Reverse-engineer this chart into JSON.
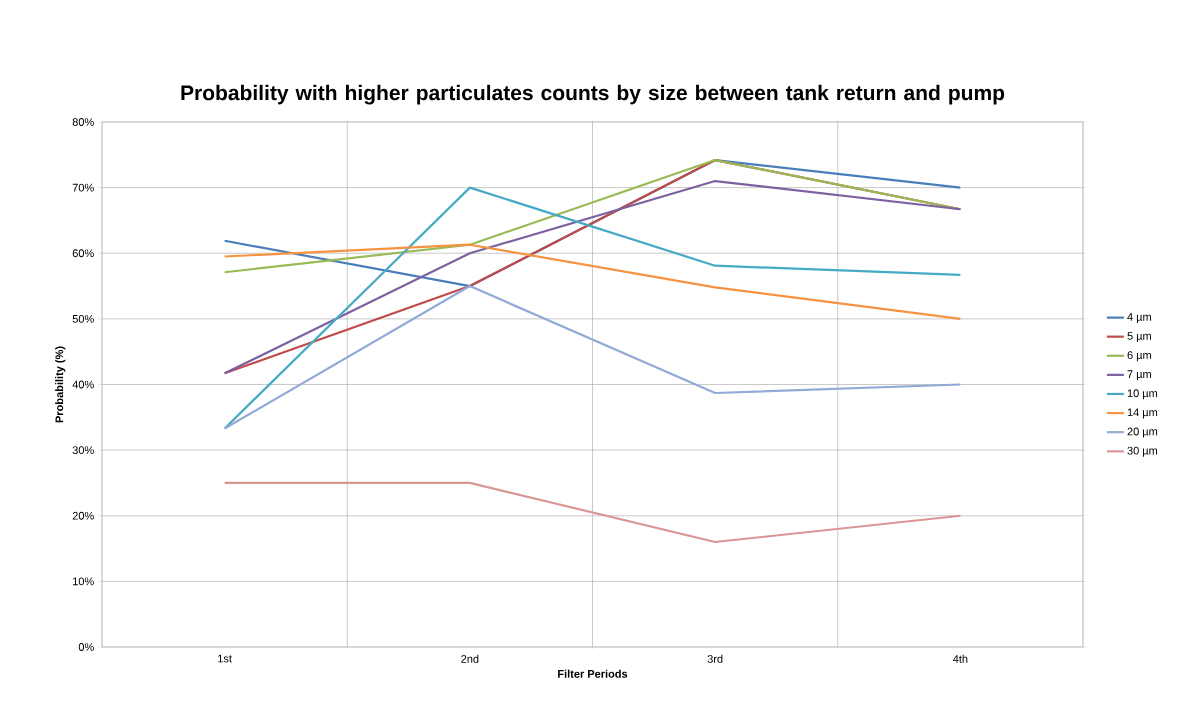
{
  "chart_data": {
    "type": "line",
    "title": "Probability with higher particulates counts by size between tank return and pump",
    "xlabel": "Filter Periods",
    "ylabel": "Probability (%)",
    "categories": [
      "1st",
      "2nd",
      "3rd",
      "4th"
    ],
    "series": [
      {
        "name": "4 µm",
        "color": "#4a7ebb",
        "values": [
          61.9,
          55,
          74.2,
          70
        ]
      },
      {
        "name": "5 µm",
        "color": "#be4b48",
        "values": [
          41.7,
          55,
          74.2,
          66.7
        ]
      },
      {
        "name": "6 µm",
        "color": "#98b954",
        "values": [
          57.1,
          61.3,
          74.2,
          66.7
        ]
      },
      {
        "name": "7 µm",
        "color": "#7d60a0",
        "values": [
          41.7,
          60,
          71,
          66.7
        ]
      },
      {
        "name": "10 µm",
        "color": "#46aac5",
        "values": [
          33.3,
          70,
          58.1,
          56.7
        ]
      },
      {
        "name": "14 µm",
        "color": "#f69240",
        "values": [
          59.5,
          61.3,
          54.8,
          50
        ]
      },
      {
        "name": "20 µm",
        "color": "#93a9d7",
        "values": [
          33.3,
          55,
          38.7,
          40
        ]
      },
      {
        "name": "30 µm",
        "color": "#d99694",
        "values": [
          25,
          25,
          16,
          20
        ]
      }
    ],
    "ylim": [
      0,
      80
    ],
    "yticks": [
      {
        "value": 0,
        "label": "0%"
      },
      {
        "value": 10,
        "label": "10%"
      },
      {
        "value": 20,
        "label": "20%"
      },
      {
        "value": 30,
        "label": "30%"
      },
      {
        "value": 40,
        "label": "40%"
      },
      {
        "value": 50,
        "label": "50%"
      },
      {
        "value": 60,
        "label": "60%"
      },
      {
        "value": 70,
        "label": "70%"
      },
      {
        "value": 80,
        "label": "80%"
      }
    ],
    "grid": true,
    "legend": "right"
  }
}
